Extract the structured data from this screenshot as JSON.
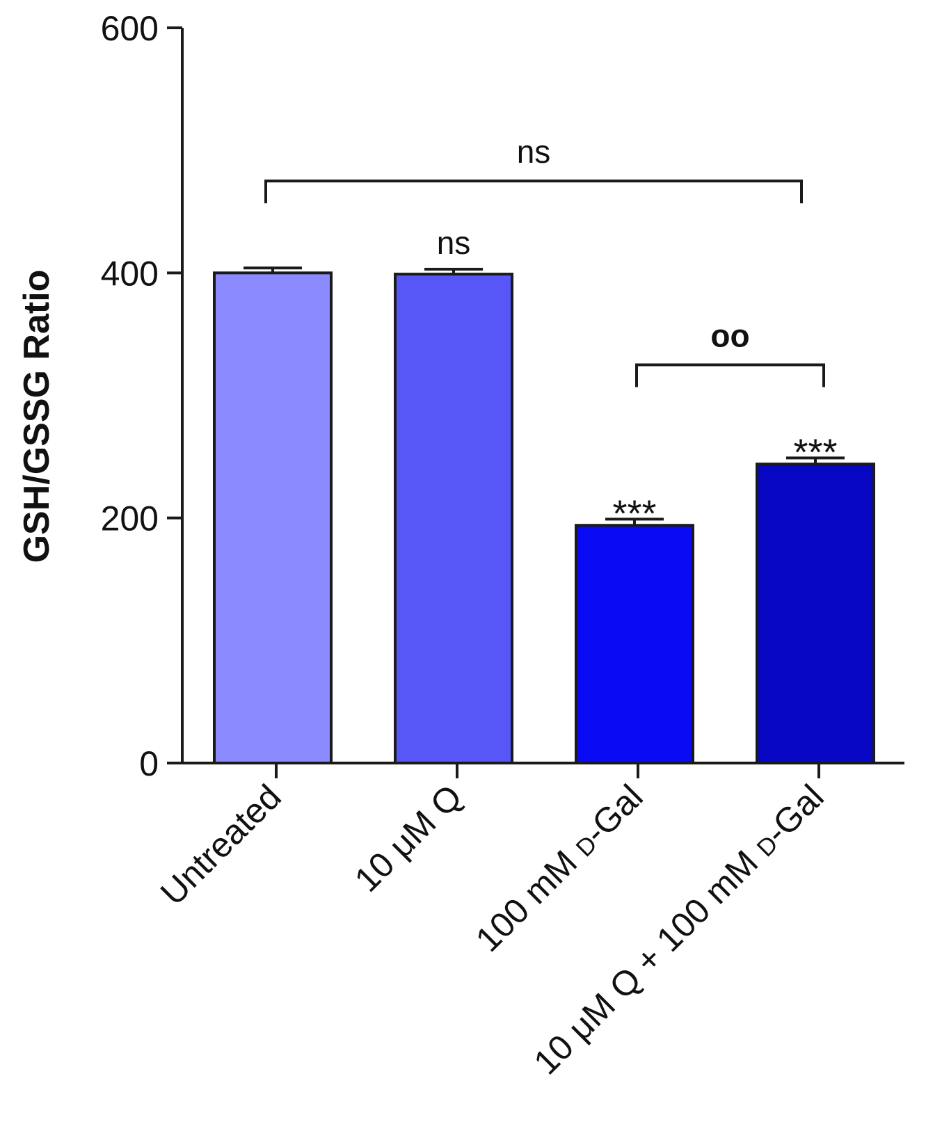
{
  "chart_data": {
    "type": "bar",
    "title": "",
    "xlabel": "",
    "ylabel": "GSH/GSSG Ratio",
    "ylim": [
      0,
      600
    ],
    "yticks": [
      0,
      200,
      400,
      600
    ],
    "grid": false,
    "categories": [
      {
        "pre": "Untreated",
        "sc": "",
        "post": ""
      },
      {
        "pre": "10 μM Q",
        "sc": "",
        "post": ""
      },
      {
        "pre": "100 mM ",
        "sc": "d",
        "post": "-Gal"
      },
      {
        "pre": "10 μM Q + 100 mM ",
        "sc": "d",
        "post": "-Gal"
      }
    ],
    "values": [
      400,
      399,
      194,
      244
    ],
    "errors": [
      4,
      4,
      5,
      5
    ],
    "colors": [
      "#8b8bff",
      "#5757f8",
      "#0a0af5",
      "#0808c4"
    ],
    "bar_labels": [
      "",
      "ns",
      "***",
      "***"
    ],
    "brackets": [
      {
        "from": 0,
        "to": 3,
        "label": "ns",
        "y": 475
      },
      {
        "from": 2,
        "to": 3,
        "label": "oo",
        "y": 325
      }
    ]
  }
}
